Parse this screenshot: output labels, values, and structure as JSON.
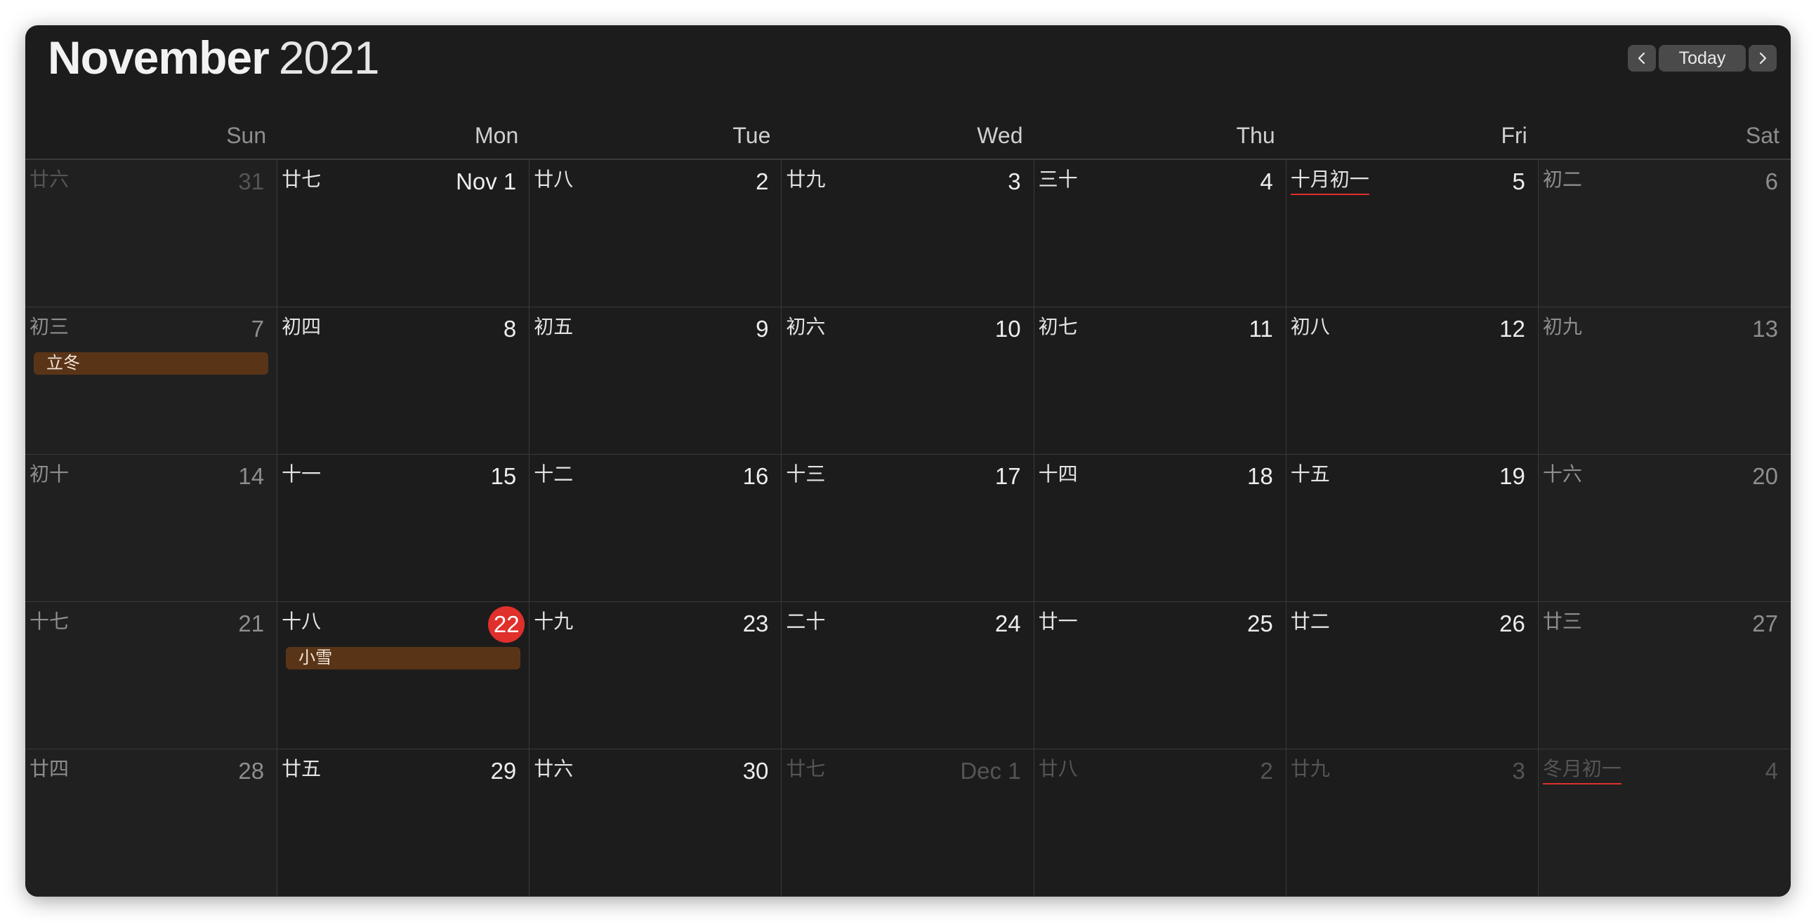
{
  "header": {
    "month": "November",
    "year": "2021",
    "today_label": "Today",
    "prev_icon": "chevron-left-icon",
    "next_icon": "chevron-right-icon"
  },
  "weekdays": [
    "Sun",
    "Mon",
    "Tue",
    "Wed",
    "Thu",
    "Fri",
    "Sat"
  ],
  "colors": {
    "today": "#e0302c",
    "event": "#5a3417",
    "background": "#1c1c1c"
  },
  "weeks": [
    [
      {
        "lunar": "廿六",
        "day": "31",
        "outside": true
      },
      {
        "lunar": "廿七",
        "day": "Nov 1"
      },
      {
        "lunar": "廿八",
        "day": "2"
      },
      {
        "lunar": "廿九",
        "day": "3"
      },
      {
        "lunar": "三十",
        "day": "4"
      },
      {
        "lunar": "十月初一",
        "day": "5",
        "lunar_underline": true
      },
      {
        "lunar": "初二",
        "day": "6"
      }
    ],
    [
      {
        "lunar": "初三",
        "day": "7",
        "event": "立冬"
      },
      {
        "lunar": "初四",
        "day": "8"
      },
      {
        "lunar": "初五",
        "day": "9"
      },
      {
        "lunar": "初六",
        "day": "10"
      },
      {
        "lunar": "初七",
        "day": "11"
      },
      {
        "lunar": "初八",
        "day": "12"
      },
      {
        "lunar": "初九",
        "day": "13"
      }
    ],
    [
      {
        "lunar": "初十",
        "day": "14"
      },
      {
        "lunar": "十一",
        "day": "15"
      },
      {
        "lunar": "十二",
        "day": "16"
      },
      {
        "lunar": "十三",
        "day": "17"
      },
      {
        "lunar": "十四",
        "day": "18"
      },
      {
        "lunar": "十五",
        "day": "19"
      },
      {
        "lunar": "十六",
        "day": "20"
      }
    ],
    [
      {
        "lunar": "十七",
        "day": "21"
      },
      {
        "lunar": "十八",
        "day": "22",
        "today": true,
        "event": "小雪"
      },
      {
        "lunar": "十九",
        "day": "23"
      },
      {
        "lunar": "二十",
        "day": "24"
      },
      {
        "lunar": "廿一",
        "day": "25"
      },
      {
        "lunar": "廿二",
        "day": "26"
      },
      {
        "lunar": "廿三",
        "day": "27"
      }
    ],
    [
      {
        "lunar": "廿四",
        "day": "28"
      },
      {
        "lunar": "廿五",
        "day": "29"
      },
      {
        "lunar": "廿六",
        "day": "30"
      },
      {
        "lunar": "廿七",
        "day": "Dec 1",
        "outside": true
      },
      {
        "lunar": "廿八",
        "day": "2",
        "outside": true
      },
      {
        "lunar": "廿九",
        "day": "3",
        "outside": true
      },
      {
        "lunar": "冬月初一",
        "day": "4",
        "outside": true,
        "lunar_underline": true
      }
    ]
  ]
}
